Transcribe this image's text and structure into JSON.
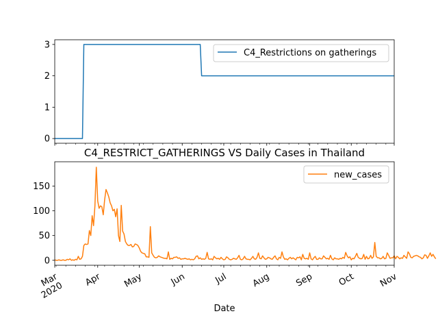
{
  "figure": {
    "title": "C4_RESTRICT_GATHERINGS VS Daily Cases in Thailand",
    "xlabel": "Date"
  },
  "chart_data": [
    {
      "type": "line",
      "title": "",
      "xlabel": "",
      "ylabel": "",
      "x_range": [
        "2020-03-01",
        "2020-11-01"
      ],
      "ylim": [
        -0.15,
        3.15
      ],
      "yticks": [
        0,
        1,
        2,
        3
      ],
      "grid": false,
      "legend_position": "upper right",
      "color": "#1f77b4",
      "series": [
        {
          "name": "C4_Restrictions on gatherings",
          "points": [
            {
              "x": "2020-03-01",
              "y": 0
            },
            {
              "x": "2020-03-21",
              "y": 0
            },
            {
              "x": "2020-03-22",
              "y": 3
            },
            {
              "x": "2020-06-14",
              "y": 3
            },
            {
              "x": "2020-06-15",
              "y": 2
            },
            {
              "x": "2020-11-01",
              "y": 2
            }
          ]
        }
      ]
    },
    {
      "type": "line",
      "title": "",
      "xlabel": "Date",
      "ylabel": "",
      "x_range": [
        "2020-03-01",
        "2020-11-01"
      ],
      "ylim": [
        -10,
        199
      ],
      "yticks": [
        0,
        50,
        100,
        150
      ],
      "xticks": [
        {
          "date": "2020-03-01",
          "label": "Mar",
          "sublabel": "2020"
        },
        {
          "date": "2020-04-01",
          "label": "Apr",
          "sublabel": ""
        },
        {
          "date": "2020-05-01",
          "label": "May",
          "sublabel": ""
        },
        {
          "date": "2020-06-01",
          "label": "Jun",
          "sublabel": ""
        },
        {
          "date": "2020-07-01",
          "label": "Jul",
          "sublabel": ""
        },
        {
          "date": "2020-08-01",
          "label": "Aug",
          "sublabel": ""
        },
        {
          "date": "2020-09-01",
          "label": "Sep",
          "sublabel": ""
        },
        {
          "date": "2020-10-01",
          "label": "Oct",
          "sublabel": ""
        },
        {
          "date": "2020-11-01",
          "label": "Nov",
          "sublabel": ""
        }
      ],
      "grid": false,
      "legend_position": "upper right",
      "color": "#ff7f0e",
      "series": [
        {
          "name": "new_cases",
          "start_date": "2020-03-01",
          "values": [
            1,
            0,
            0,
            1,
            0,
            0,
            1,
            0,
            0,
            2,
            1,
            3,
            0,
            1,
            0,
            2,
            1,
            8,
            2,
            3,
            8,
            30,
            33,
            32,
            33,
            60,
            50,
            90,
            70,
            110,
            188,
            120,
            105,
            110,
            108,
            92,
            122,
            143,
            136,
            128,
            116,
            110,
            100,
            103,
            88,
            104,
            50,
            38,
            111,
            59,
            53,
            38,
            33,
            30,
            30,
            32,
            27,
            28,
            33,
            32,
            30,
            25,
            18,
            15,
            14,
            13,
            7,
            7,
            6,
            68,
            15,
            10,
            6,
            5,
            6,
            9,
            7,
            6,
            5,
            4,
            4,
            3,
            17,
            2,
            4,
            3,
            6,
            6,
            7,
            4,
            5,
            2,
            3,
            3,
            4,
            3,
            2,
            3,
            1,
            2,
            1,
            3,
            8,
            9,
            3,
            5,
            2,
            3,
            2,
            4,
            16,
            3,
            2,
            3,
            1,
            8,
            5,
            3,
            4,
            2,
            6,
            3,
            1,
            2,
            7,
            5,
            2,
            1,
            2,
            4,
            3,
            2,
            5,
            10,
            2,
            1,
            3,
            8,
            3,
            2,
            2,
            1,
            4,
            8,
            3,
            2,
            6,
            15,
            4,
            3,
            9,
            5,
            2,
            3,
            6,
            5,
            3,
            2,
            6,
            9,
            3,
            1,
            6,
            4,
            17,
            7,
            2,
            3,
            1,
            4,
            6,
            3,
            5,
            3,
            1,
            6,
            5,
            7,
            1,
            12,
            4,
            3,
            4,
            2,
            15,
            3,
            1,
            5,
            8,
            2,
            2,
            5,
            3,
            3,
            9,
            6,
            3,
            4,
            2,
            10,
            3,
            1,
            5,
            3,
            3,
            2,
            4,
            3,
            6,
            4,
            16,
            9,
            5,
            7,
            1,
            4,
            3,
            8,
            14,
            6,
            4,
            3,
            4,
            12,
            2,
            8,
            3,
            4,
            10,
            4,
            7,
            36,
            8,
            5,
            5,
            3,
            4,
            8,
            3,
            4,
            15,
            10,
            4,
            5,
            5,
            9,
            3,
            8,
            6,
            3,
            5,
            4,
            10,
            7,
            4,
            17,
            13,
            6,
            5,
            8,
            9,
            10,
            9,
            7,
            6,
            3,
            5,
            11,
            10,
            4,
            9,
            15,
            8,
            12,
            7,
            3
          ]
        }
      ]
    }
  ]
}
